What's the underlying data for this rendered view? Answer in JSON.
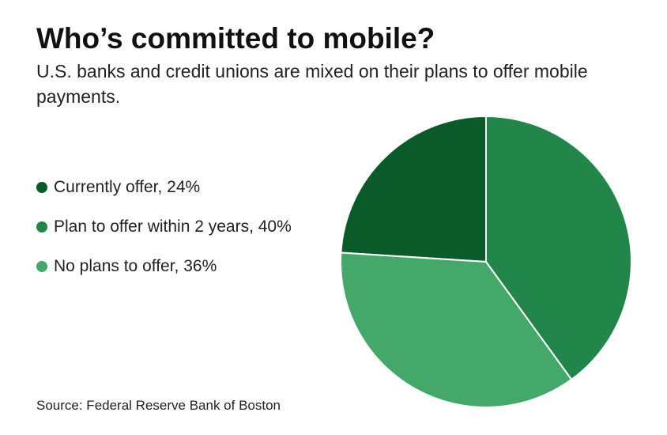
{
  "chart_data": {
    "type": "pie",
    "title": "Who’s committed to mobile?",
    "subtitle": "U.S. banks and credit unions are mixed on their plans to offer mobile payments.",
    "categories": [
      "Currently offer, 24%",
      "Plan to offer within 2 years, 40%",
      "No plans to offer, 36%"
    ],
    "values": [
      24,
      40,
      36
    ],
    "colors": [
      "#0b5a2a",
      "#22864a",
      "#45a86b"
    ],
    "source": "Source: Federal Reserve Bank of Boston"
  }
}
